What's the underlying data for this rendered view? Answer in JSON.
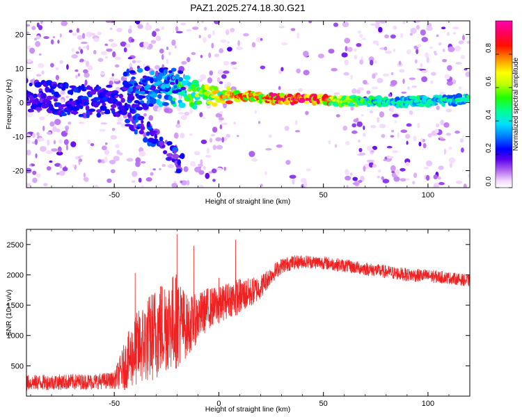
{
  "title": "PAZ1.2025.274.18.30.G21",
  "chart_data": [
    {
      "type": "heatmap",
      "xlabel": "Height of straight line (km)",
      "ylabel": "Frequency (Hz)",
      "xlim": [
        -92,
        120
      ],
      "ylim": [
        -25,
        24
      ],
      "xticks": [
        -50,
        0,
        50,
        100
      ],
      "yticks": [
        -20,
        -10,
        0,
        10,
        20
      ],
      "colorbar": {
        "label": "Normalized spectral amplitude",
        "range": [
          0,
          1
        ],
        "ticks": [
          0.0,
          0.2,
          0.4,
          0.6,
          0.8
        ]
      },
      "ridge": {
        "description_x": [
          -90,
          -75,
          -60,
          -45,
          -30,
          -15,
          0,
          10,
          20,
          30,
          45,
          60,
          80,
          100,
          120
        ],
        "frequency": [
          2,
          1,
          0,
          1,
          4,
          3,
          1.5,
          2,
          1.5,
          1,
          1,
          0.5,
          0,
          0.5,
          1
        ],
        "amplitude": [
          0.2,
          0.25,
          0.25,
          0.25,
          0.35,
          0.55,
          0.7,
          0.85,
          0.8,
          0.95,
          0.95,
          0.6,
          0.45,
          0.45,
          0.45
        ]
      }
    },
    {
      "type": "line",
      "xlabel": "Height of straight line (km)",
      "ylabel": "SNR (10 * v/v)",
      "xlim": [
        -92,
        120
      ],
      "ylim": [
        0,
        2750
      ],
      "xticks": [
        -50,
        0,
        50,
        100
      ],
      "yticks": [
        500,
        1000,
        1500,
        2000,
        2500
      ],
      "series": [
        {
          "name": "SNR",
          "color": "#ee2222",
          "envelope_x": [
            -92,
            -80,
            -60,
            -50,
            -45,
            -40,
            -35,
            -30,
            -25,
            -20,
            -15,
            -10,
            -5,
            0,
            5,
            10,
            15,
            20,
            25,
            30,
            35,
            40,
            50,
            60,
            70,
            80,
            90,
            100,
            110,
            120
          ],
          "envelope_y": [
            220,
            230,
            240,
            260,
            500,
            750,
            900,
            1050,
            1200,
            1250,
            1150,
            1300,
            1450,
            1500,
            1600,
            1650,
            1700,
            1800,
            2000,
            2150,
            2200,
            2220,
            2200,
            2150,
            2100,
            2050,
            2000,
            1980,
            1950,
            1900
          ],
          "noise_amplitude": [
            130,
            130,
            130,
            140,
            400,
            600,
            700,
            800,
            800,
            800,
            500,
            400,
            350,
            300,
            300,
            300,
            250,
            200,
            150,
            130,
            120,
            110,
            110,
            110,
            110,
            110,
            110,
            110,
            100,
            100
          ],
          "peaks": [
            [
              -20,
              2670
            ],
            [
              -12,
              2480
            ],
            [
              0,
              1950
            ],
            [
              8,
              2580
            ],
            [
              -40,
              2030
            ]
          ]
        }
      ]
    }
  ]
}
